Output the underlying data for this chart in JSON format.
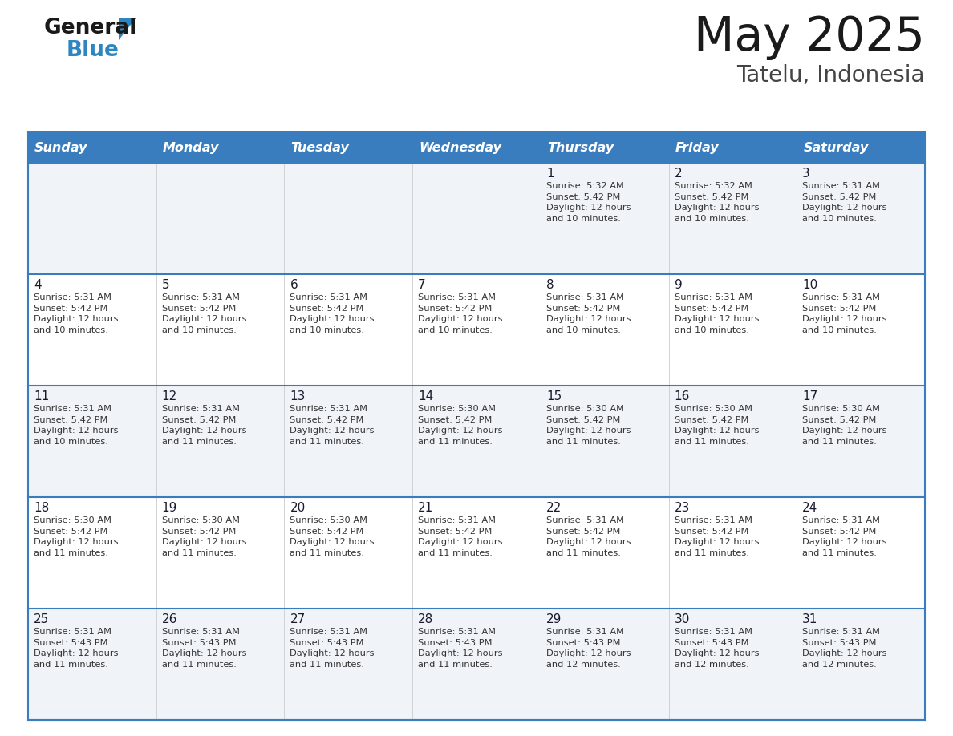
{
  "title": "May 2025",
  "subtitle": "Tatelu, Indonesia",
  "days_of_week": [
    "Sunday",
    "Monday",
    "Tuesday",
    "Wednesday",
    "Thursday",
    "Friday",
    "Saturday"
  ],
  "header_bg": "#3a7dbf",
  "header_text_color": "#ffffff",
  "row_bg_odd": "#f0f4f8",
  "row_bg_even": "#ffffff",
  "cell_text_color": "#333333",
  "day_number_color": "#1a1a2e",
  "border_color": "#3a7dbf",
  "row_line_color": "#3a7dbf",
  "title_color": "#1a1a1a",
  "subtitle_color": "#444444",
  "logo_color1": "#1a1a1a",
  "logo_color2": "#2e86c1",
  "logo_tri_color": "#2e86c1",
  "calendar": [
    [
      {
        "day": "",
        "info": ""
      },
      {
        "day": "",
        "info": ""
      },
      {
        "day": "",
        "info": ""
      },
      {
        "day": "",
        "info": ""
      },
      {
        "day": "1",
        "info": "Sunrise: 5:32 AM\nSunset: 5:42 PM\nDaylight: 12 hours\nand 10 minutes."
      },
      {
        "day": "2",
        "info": "Sunrise: 5:32 AM\nSunset: 5:42 PM\nDaylight: 12 hours\nand 10 minutes."
      },
      {
        "day": "3",
        "info": "Sunrise: 5:31 AM\nSunset: 5:42 PM\nDaylight: 12 hours\nand 10 minutes."
      }
    ],
    [
      {
        "day": "4",
        "info": "Sunrise: 5:31 AM\nSunset: 5:42 PM\nDaylight: 12 hours\nand 10 minutes."
      },
      {
        "day": "5",
        "info": "Sunrise: 5:31 AM\nSunset: 5:42 PM\nDaylight: 12 hours\nand 10 minutes."
      },
      {
        "day": "6",
        "info": "Sunrise: 5:31 AM\nSunset: 5:42 PM\nDaylight: 12 hours\nand 10 minutes."
      },
      {
        "day": "7",
        "info": "Sunrise: 5:31 AM\nSunset: 5:42 PM\nDaylight: 12 hours\nand 10 minutes."
      },
      {
        "day": "8",
        "info": "Sunrise: 5:31 AM\nSunset: 5:42 PM\nDaylight: 12 hours\nand 10 minutes."
      },
      {
        "day": "9",
        "info": "Sunrise: 5:31 AM\nSunset: 5:42 PM\nDaylight: 12 hours\nand 10 minutes."
      },
      {
        "day": "10",
        "info": "Sunrise: 5:31 AM\nSunset: 5:42 PM\nDaylight: 12 hours\nand 10 minutes."
      }
    ],
    [
      {
        "day": "11",
        "info": "Sunrise: 5:31 AM\nSunset: 5:42 PM\nDaylight: 12 hours\nand 10 minutes."
      },
      {
        "day": "12",
        "info": "Sunrise: 5:31 AM\nSunset: 5:42 PM\nDaylight: 12 hours\nand 11 minutes."
      },
      {
        "day": "13",
        "info": "Sunrise: 5:31 AM\nSunset: 5:42 PM\nDaylight: 12 hours\nand 11 minutes."
      },
      {
        "day": "14",
        "info": "Sunrise: 5:30 AM\nSunset: 5:42 PM\nDaylight: 12 hours\nand 11 minutes."
      },
      {
        "day": "15",
        "info": "Sunrise: 5:30 AM\nSunset: 5:42 PM\nDaylight: 12 hours\nand 11 minutes."
      },
      {
        "day": "16",
        "info": "Sunrise: 5:30 AM\nSunset: 5:42 PM\nDaylight: 12 hours\nand 11 minutes."
      },
      {
        "day": "17",
        "info": "Sunrise: 5:30 AM\nSunset: 5:42 PM\nDaylight: 12 hours\nand 11 minutes."
      }
    ],
    [
      {
        "day": "18",
        "info": "Sunrise: 5:30 AM\nSunset: 5:42 PM\nDaylight: 12 hours\nand 11 minutes."
      },
      {
        "day": "19",
        "info": "Sunrise: 5:30 AM\nSunset: 5:42 PM\nDaylight: 12 hours\nand 11 minutes."
      },
      {
        "day": "20",
        "info": "Sunrise: 5:30 AM\nSunset: 5:42 PM\nDaylight: 12 hours\nand 11 minutes."
      },
      {
        "day": "21",
        "info": "Sunrise: 5:31 AM\nSunset: 5:42 PM\nDaylight: 12 hours\nand 11 minutes."
      },
      {
        "day": "22",
        "info": "Sunrise: 5:31 AM\nSunset: 5:42 PM\nDaylight: 12 hours\nand 11 minutes."
      },
      {
        "day": "23",
        "info": "Sunrise: 5:31 AM\nSunset: 5:42 PM\nDaylight: 12 hours\nand 11 minutes."
      },
      {
        "day": "24",
        "info": "Sunrise: 5:31 AM\nSunset: 5:42 PM\nDaylight: 12 hours\nand 11 minutes."
      }
    ],
    [
      {
        "day": "25",
        "info": "Sunrise: 5:31 AM\nSunset: 5:43 PM\nDaylight: 12 hours\nand 11 minutes."
      },
      {
        "day": "26",
        "info": "Sunrise: 5:31 AM\nSunset: 5:43 PM\nDaylight: 12 hours\nand 11 minutes."
      },
      {
        "day": "27",
        "info": "Sunrise: 5:31 AM\nSunset: 5:43 PM\nDaylight: 12 hours\nand 11 minutes."
      },
      {
        "day": "28",
        "info": "Sunrise: 5:31 AM\nSunset: 5:43 PM\nDaylight: 12 hours\nand 11 minutes."
      },
      {
        "day": "29",
        "info": "Sunrise: 5:31 AM\nSunset: 5:43 PM\nDaylight: 12 hours\nand 12 minutes."
      },
      {
        "day": "30",
        "info": "Sunrise: 5:31 AM\nSunset: 5:43 PM\nDaylight: 12 hours\nand 12 minutes."
      },
      {
        "day": "31",
        "info": "Sunrise: 5:31 AM\nSunset: 5:43 PM\nDaylight: 12 hours\nand 12 minutes."
      }
    ]
  ]
}
